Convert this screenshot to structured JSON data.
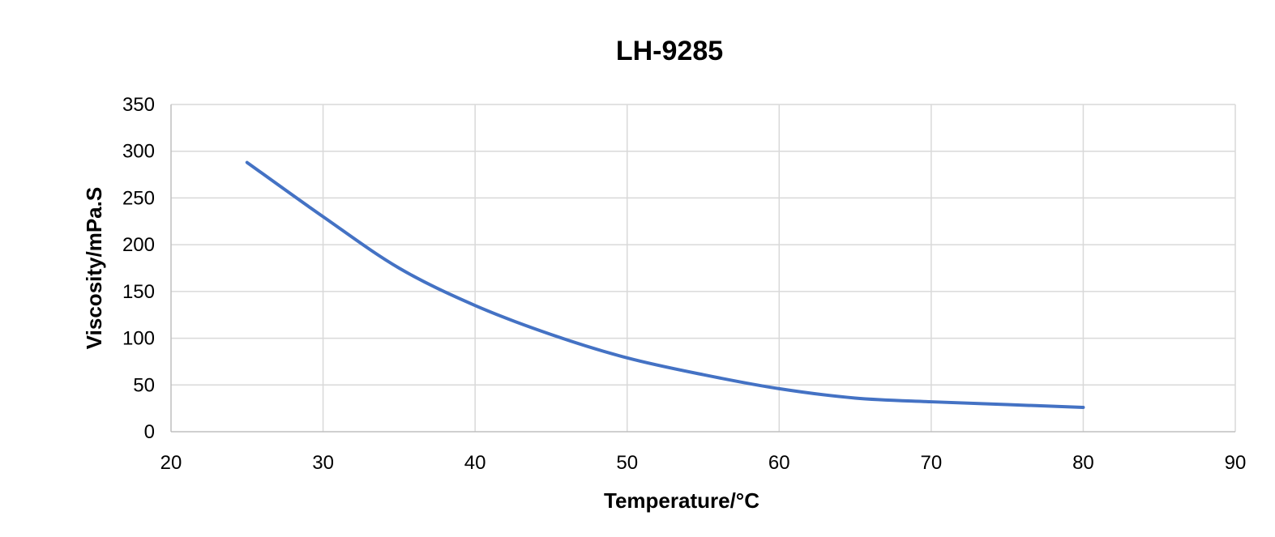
{
  "chart_data": {
    "type": "line",
    "title": "LH-9285",
    "xlabel": "Temperature/°C",
    "ylabel": "Viscosity/mPa.S",
    "xlim": [
      20,
      90
    ],
    "ylim": [
      0,
      350
    ],
    "xticks": [
      "20",
      "30",
      "40",
      "50",
      "60",
      "70",
      "80",
      "90"
    ],
    "yticks": [
      "0",
      "50",
      "100",
      "150",
      "200",
      "250",
      "300",
      "350"
    ],
    "grid": true,
    "legend": "none",
    "series": [
      {
        "color": "#4472c4",
        "x": [
          25,
          30,
          35,
          40,
          45,
          50,
          55,
          60,
          65,
          70,
          75,
          80
        ],
        "y": [
          288,
          230,
          175,
          135,
          104,
          79,
          61,
          46,
          36,
          32,
          29,
          26
        ]
      }
    ]
  }
}
